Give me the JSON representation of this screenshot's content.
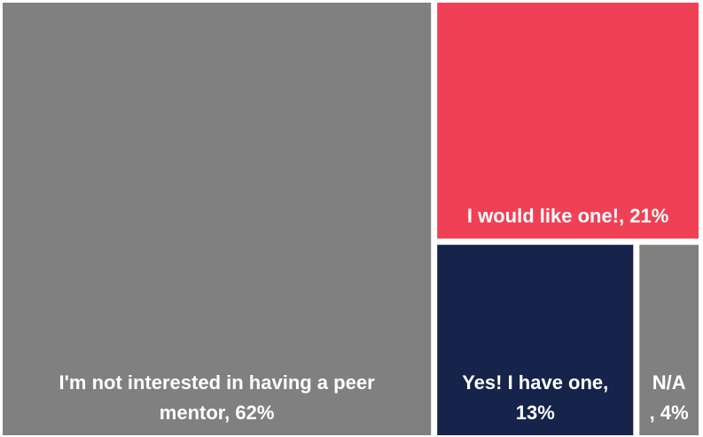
{
  "chart_data": {
    "type": "treemap",
    "title": "",
    "items": [
      {
        "name": "I'm not interested in having a peer mentor",
        "value": 62,
        "label_lines": [
          "I'm not interested in having a peer",
          "mentor, 62%"
        ],
        "color": "#808080"
      },
      {
        "name": "I would like one!",
        "value": 21,
        "label_lines": [
          "I would like one!, 21%"
        ],
        "color": "#f04056"
      },
      {
        "name": "Yes! I have one,",
        "value": 13,
        "label_lines": [
          "Yes! I have one,",
          "13%"
        ],
        "color": "#16234b"
      },
      {
        "name": "N/A",
        "value": 4,
        "label_lines": [
          "N/A",
          ", 4%"
        ],
        "color": "#808080"
      }
    ]
  }
}
